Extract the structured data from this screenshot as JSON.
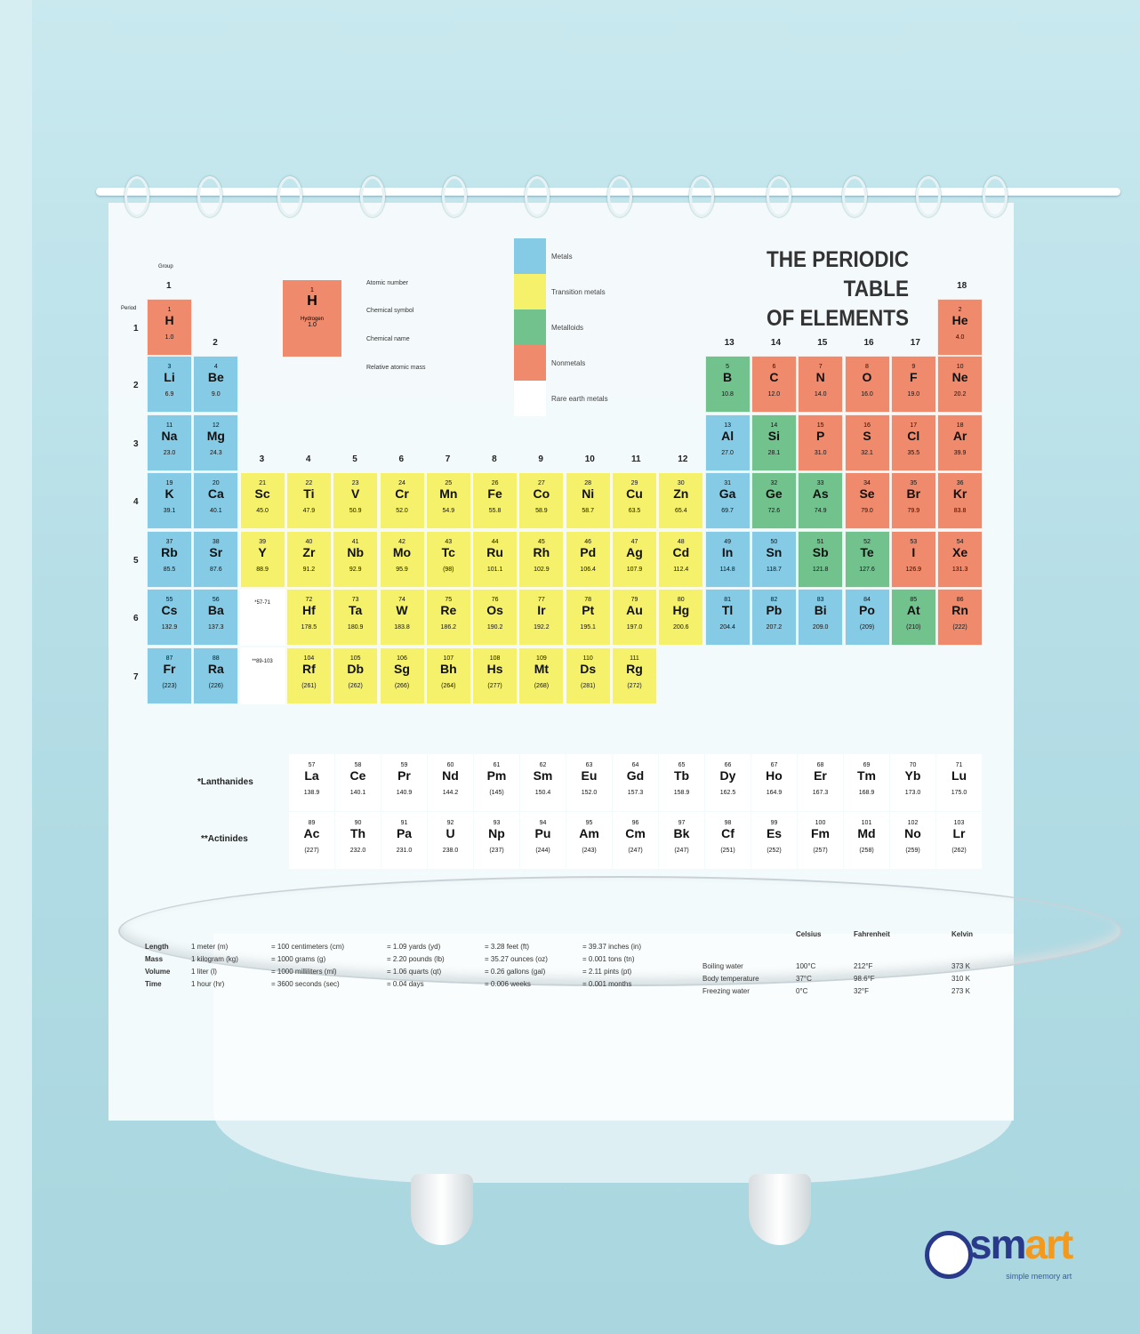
{
  "colors": {
    "metal": "#86cbe6",
    "transition": "#f6f16a",
    "metalloid": "#72c28e",
    "nonmetal": "#f08a6c",
    "rare": "#ffffff"
  },
  "title": {
    "line1": "THE PERIODIC TABLE",
    "line2": "OF ELEMENTS"
  },
  "legend": [
    {
      "cat": "metal",
      "label": "Metals"
    },
    {
      "cat": "transition",
      "label": "Transition metals"
    },
    {
      "cat": "metalloid",
      "label": "Metalloids"
    },
    {
      "cat": "nonmetal",
      "label": "Nonmetals"
    },
    {
      "cat": "rare",
      "label": "Rare earth metals"
    }
  ],
  "key": {
    "number": "1",
    "symbol": "H",
    "name": "Hydrogen",
    "mass": "1.0",
    "annotations": [
      "Atomic number",
      "Chemical symbol",
      "Chemical name",
      "Relative atomic mass"
    ]
  },
  "group_label": "Group",
  "period_label": "Period",
  "groups": [
    "1",
    "2",
    "3",
    "4",
    "5",
    "6",
    "7",
    "8",
    "9",
    "10",
    "11",
    "12",
    "13",
    "14",
    "15",
    "16",
    "17",
    "18"
  ],
  "periods": [
    "1",
    "2",
    "3",
    "4",
    "5",
    "6",
    "7"
  ],
  "placeholders": {
    "lanthanide_range": "*57-71",
    "actinide_range": "**89-103"
  },
  "series_labels": {
    "lanthanides": "*Lanthanides",
    "actinides": "**Actinides"
  },
  "elements": [
    [
      1,
      "H",
      "1.0",
      "nonmetal",
      1,
      1
    ],
    [
      2,
      "He",
      "4.0",
      "nonmetal",
      1,
      18
    ],
    [
      3,
      "Li",
      "6.9",
      "metal",
      2,
      1
    ],
    [
      4,
      "Be",
      "9.0",
      "metal",
      2,
      2
    ],
    [
      5,
      "B",
      "10.8",
      "metalloid",
      2,
      13
    ],
    [
      6,
      "C",
      "12.0",
      "nonmetal",
      2,
      14
    ],
    [
      7,
      "N",
      "14.0",
      "nonmetal",
      2,
      15
    ],
    [
      8,
      "O",
      "16.0",
      "nonmetal",
      2,
      16
    ],
    [
      9,
      "F",
      "19.0",
      "nonmetal",
      2,
      17
    ],
    [
      10,
      "Ne",
      "20.2",
      "nonmetal",
      2,
      18
    ],
    [
      11,
      "Na",
      "23.0",
      "metal",
      3,
      1
    ],
    [
      12,
      "Mg",
      "24.3",
      "metal",
      3,
      2
    ],
    [
      13,
      "Al",
      "27.0",
      "metal",
      3,
      13
    ],
    [
      14,
      "Si",
      "28.1",
      "metalloid",
      3,
      14
    ],
    [
      15,
      "P",
      "31.0",
      "nonmetal",
      3,
      15
    ],
    [
      16,
      "S",
      "32.1",
      "nonmetal",
      3,
      16
    ],
    [
      17,
      "Cl",
      "35.5",
      "nonmetal",
      3,
      17
    ],
    [
      18,
      "Ar",
      "39.9",
      "nonmetal",
      3,
      18
    ],
    [
      19,
      "K",
      "39.1",
      "metal",
      4,
      1
    ],
    [
      20,
      "Ca",
      "40.1",
      "metal",
      4,
      2
    ],
    [
      21,
      "Sc",
      "45.0",
      "transition",
      4,
      3
    ],
    [
      22,
      "Ti",
      "47.9",
      "transition",
      4,
      4
    ],
    [
      23,
      "V",
      "50.9",
      "transition",
      4,
      5
    ],
    [
      24,
      "Cr",
      "52.0",
      "transition",
      4,
      6
    ],
    [
      25,
      "Mn",
      "54.9",
      "transition",
      4,
      7
    ],
    [
      26,
      "Fe",
      "55.8",
      "transition",
      4,
      8
    ],
    [
      27,
      "Co",
      "58.9",
      "transition",
      4,
      9
    ],
    [
      28,
      "Ni",
      "58.7",
      "transition",
      4,
      10
    ],
    [
      29,
      "Cu",
      "63.5",
      "transition",
      4,
      11
    ],
    [
      30,
      "Zn",
      "65.4",
      "transition",
      4,
      12
    ],
    [
      31,
      "Ga",
      "69.7",
      "metal",
      4,
      13
    ],
    [
      32,
      "Ge",
      "72.6",
      "metalloid",
      4,
      14
    ],
    [
      33,
      "As",
      "74.9",
      "metalloid",
      4,
      15
    ],
    [
      34,
      "Se",
      "79.0",
      "nonmetal",
      4,
      16
    ],
    [
      35,
      "Br",
      "79.9",
      "nonmetal",
      4,
      17
    ],
    [
      36,
      "Kr",
      "83.8",
      "nonmetal",
      4,
      18
    ],
    [
      37,
      "Rb",
      "85.5",
      "metal",
      5,
      1
    ],
    [
      38,
      "Sr",
      "87.6",
      "metal",
      5,
      2
    ],
    [
      39,
      "Y",
      "88.9",
      "transition",
      5,
      3
    ],
    [
      40,
      "Zr",
      "91.2",
      "transition",
      5,
      4
    ],
    [
      41,
      "Nb",
      "92.9",
      "transition",
      5,
      5
    ],
    [
      42,
      "Mo",
      "95.9",
      "transition",
      5,
      6
    ],
    [
      43,
      "Tc",
      "(98)",
      "transition",
      5,
      7
    ],
    [
      44,
      "Ru",
      "101.1",
      "transition",
      5,
      8
    ],
    [
      45,
      "Rh",
      "102.9",
      "transition",
      5,
      9
    ],
    [
      46,
      "Pd",
      "106.4",
      "transition",
      5,
      10
    ],
    [
      47,
      "Ag",
      "107.9",
      "transition",
      5,
      11
    ],
    [
      48,
      "Cd",
      "112.4",
      "transition",
      5,
      12
    ],
    [
      49,
      "In",
      "114.8",
      "metal",
      5,
      13
    ],
    [
      50,
      "Sn",
      "118.7",
      "metal",
      5,
      14
    ],
    [
      51,
      "Sb",
      "121.8",
      "metalloid",
      5,
      15
    ],
    [
      52,
      "Te",
      "127.6",
      "metalloid",
      5,
      16
    ],
    [
      53,
      "I",
      "126.9",
      "nonmetal",
      5,
      17
    ],
    [
      54,
      "Xe",
      "131.3",
      "nonmetal",
      5,
      18
    ],
    [
      55,
      "Cs",
      "132.9",
      "metal",
      6,
      1
    ],
    [
      56,
      "Ba",
      "137.3",
      "metal",
      6,
      2
    ],
    [
      72,
      "Hf",
      "178.5",
      "transition",
      6,
      4
    ],
    [
      73,
      "Ta",
      "180.9",
      "transition",
      6,
      5
    ],
    [
      74,
      "W",
      "183.8",
      "transition",
      6,
      6
    ],
    [
      75,
      "Re",
      "186.2",
      "transition",
      6,
      7
    ],
    [
      76,
      "Os",
      "190.2",
      "transition",
      6,
      8
    ],
    [
      77,
      "Ir",
      "192.2",
      "transition",
      6,
      9
    ],
    [
      78,
      "Pt",
      "195.1",
      "transition",
      6,
      10
    ],
    [
      79,
      "Au",
      "197.0",
      "transition",
      6,
      11
    ],
    [
      80,
      "Hg",
      "200.6",
      "transition",
      6,
      12
    ],
    [
      81,
      "Tl",
      "204.4",
      "metal",
      6,
      13
    ],
    [
      82,
      "Pb",
      "207.2",
      "metal",
      6,
      14
    ],
    [
      83,
      "Bi",
      "209.0",
      "metal",
      6,
      15
    ],
    [
      84,
      "Po",
      "(209)",
      "metal",
      6,
      16
    ],
    [
      85,
      "At",
      "(210)",
      "metalloid",
      6,
      17
    ],
    [
      86,
      "Rn",
      "(222)",
      "nonmetal",
      6,
      18
    ],
    [
      87,
      "Fr",
      "(223)",
      "metal",
      7,
      1
    ],
    [
      88,
      "Ra",
      "(226)",
      "metal",
      7,
      2
    ],
    [
      104,
      "Rf",
      "(261)",
      "transition",
      7,
      4
    ],
    [
      105,
      "Db",
      "(262)",
      "transition",
      7,
      5
    ],
    [
      106,
      "Sg",
      "(266)",
      "transition",
      7,
      6
    ],
    [
      107,
      "Bh",
      "(264)",
      "transition",
      7,
      7
    ],
    [
      108,
      "Hs",
      "(277)",
      "transition",
      7,
      8
    ],
    [
      109,
      "Mt",
      "(268)",
      "transition",
      7,
      9
    ],
    [
      110,
      "Ds",
      "(281)",
      "transition",
      7,
      10
    ],
    [
      111,
      "Rg",
      "(272)",
      "transition",
      7,
      11
    ]
  ],
  "lanthanides": [
    [
      57,
      "La",
      "138.9"
    ],
    [
      58,
      "Ce",
      "140.1"
    ],
    [
      59,
      "Pr",
      "140.9"
    ],
    [
      60,
      "Nd",
      "144.2"
    ],
    [
      61,
      "Pm",
      "(145)"
    ],
    [
      62,
      "Sm",
      "150.4"
    ],
    [
      63,
      "Eu",
      "152.0"
    ],
    [
      64,
      "Gd",
      "157.3"
    ],
    [
      65,
      "Tb",
      "158.9"
    ],
    [
      66,
      "Dy",
      "162.5"
    ],
    [
      67,
      "Ho",
      "164.9"
    ],
    [
      68,
      "Er",
      "167.3"
    ],
    [
      69,
      "Tm",
      "168.9"
    ],
    [
      70,
      "Yb",
      "173.0"
    ],
    [
      71,
      "Lu",
      "175.0"
    ]
  ],
  "actinides": [
    [
      89,
      "Ac",
      "(227)"
    ],
    [
      90,
      "Th",
      "232.0"
    ],
    [
      91,
      "Pa",
      "231.0"
    ],
    [
      92,
      "U",
      "238.0"
    ],
    [
      93,
      "Np",
      "(237)"
    ],
    [
      94,
      "Pu",
      "(244)"
    ],
    [
      95,
      "Am",
      "(243)"
    ],
    [
      96,
      "Cm",
      "(247)"
    ],
    [
      97,
      "Bk",
      "(247)"
    ],
    [
      98,
      "Cf",
      "(251)"
    ],
    [
      99,
      "Es",
      "(252)"
    ],
    [
      100,
      "Fm",
      "(257)"
    ],
    [
      101,
      "Md",
      "(258)"
    ],
    [
      102,
      "No",
      "(259)"
    ],
    [
      103,
      "Lr",
      "(262)"
    ]
  ],
  "conversions": [
    {
      "label": "Length",
      "values": [
        "1 meter (m)",
        "= 100 centimeters (cm)",
        "= 1.09 yards (yd)",
        "= 3.28 feet (ft)",
        "= 39.37 inches (in)"
      ]
    },
    {
      "label": "Mass",
      "values": [
        "1 kilogram (kg)",
        "= 1000 grams (g)",
        "= 2.20 pounds (lb)",
        "= 35.27 ounces (oz)",
        "= 0.001 tons (tn)"
      ]
    },
    {
      "label": "Volume",
      "values": [
        "1 liter (l)",
        "= 1000 milliliters (ml)",
        "= 1.06 quarts (qt)",
        "= 0.26 gallons (gal)",
        "= 2.11 pints (pt)"
      ]
    },
    {
      "label": "Time",
      "values": [
        "1 hour (hr)",
        "= 3600 seconds (sec)",
        "= 0.04 days",
        "= 0.006 weeks",
        "= 0.001 months"
      ]
    }
  ],
  "temperature": {
    "headers": [
      "Celsius",
      "Fahrenheit",
      "Kelvin"
    ],
    "rows": [
      {
        "label": "Boiling water",
        "values": [
          "100°C",
          "212°F",
          "373 K"
        ]
      },
      {
        "label": "Body temperature",
        "values": [
          "37°C",
          "98.6°F",
          "310 K"
        ]
      },
      {
        "label": "Freezing water",
        "values": [
          "0°C",
          "32°F",
          "273 K"
        ]
      }
    ]
  },
  "brand": {
    "name_a": "sm",
    "name_b": "art",
    "tagline": "simple memory art",
    "color_a": "#2a3a8a",
    "color_b": "#f39a1e"
  }
}
